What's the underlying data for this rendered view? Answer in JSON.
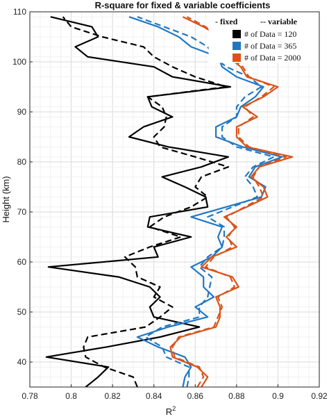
{
  "chart_data": {
    "type": "line",
    "title": "R-square for fixed & variable coefficients",
    "xlabel": "R",
    "xlabel_sup": "2",
    "ylabel": "Height (km)",
    "xlim": [
      0.78,
      0.92
    ],
    "ylim": [
      35,
      110
    ],
    "xticks": [
      "0.78",
      "0.8",
      "0.82",
      "0.84",
      "0.86",
      "0.88",
      "0.9",
      "0.92"
    ],
    "yticks": [
      "40",
      "50",
      "60",
      "70",
      "80",
      "90",
      "100",
      "110"
    ],
    "grid": true,
    "legend_position": "top-right",
    "legend": {
      "style_fixed": "- fixed",
      "style_variable": "-- variable",
      "entries": [
        {
          "label": "# of Data = 120",
          "color": "#000000"
        },
        {
          "label": "# of Data = 365",
          "color": "#1f77c4"
        },
        {
          "label": "# of Data = 2000",
          "color": "#d95319"
        }
      ]
    },
    "heights": [
      35,
      37,
      39,
      41,
      43,
      45,
      47,
      49,
      51,
      53,
      55,
      57,
      59,
      61,
      63,
      65,
      67,
      69,
      71,
      73,
      75,
      77,
      79,
      81,
      83,
      85,
      87,
      89,
      91,
      93,
      95,
      97,
      99,
      101,
      103,
      105,
      107,
      109
    ],
    "series": [
      {
        "color": "#000000",
        "style": "solid",
        "values": [
          0.807,
          0.813,
          0.818,
          0.788,
          0.817,
          0.843,
          0.862,
          0.84,
          0.838,
          0.843,
          0.838,
          0.823,
          0.789,
          0.842,
          0.84,
          0.858,
          0.837,
          0.838,
          0.866,
          0.865,
          0.855,
          0.844,
          0.863,
          0.876,
          0.847,
          0.828,
          0.835,
          0.849,
          0.839,
          0.837,
          0.877,
          0.849,
          0.84,
          0.808,
          0.802,
          0.813,
          0.81,
          0.79
        ]
      },
      {
        "color": "#000000",
        "style": "dashed",
        "values": [
          0.832,
          0.83,
          0.816,
          0.807,
          0.806,
          0.808,
          0.836,
          0.843,
          0.849,
          0.84,
          0.843,
          0.832,
          0.831,
          0.826,
          0.838,
          0.853,
          0.838,
          0.845,
          0.858,
          0.866,
          0.86,
          0.863,
          0.876,
          0.86,
          0.843,
          0.84,
          0.845,
          0.846,
          0.844,
          0.837,
          0.875,
          0.86,
          0.849,
          0.84,
          0.835,
          0.815,
          0.8,
          0.796
        ]
      },
      {
        "color": "#1f77c4",
        "style": "solid",
        "values": [
          0.854,
          0.855,
          0.858,
          0.855,
          0.842,
          0.832,
          0.847,
          0.866,
          0.86,
          0.869,
          0.864,
          0.864,
          0.858,
          0.868,
          0.873,
          0.871,
          0.873,
          0.858,
          0.875,
          0.892,
          0.894,
          0.886,
          0.889,
          0.902,
          0.883,
          0.87,
          0.87,
          0.88,
          0.882,
          0.889,
          0.893,
          0.88,
          0.873,
          0.871,
          0.858,
          0.852,
          0.842,
          0.828
        ]
      },
      {
        "color": "#1f77c4",
        "style": "dashed",
        "values": [
          0.856,
          0.857,
          0.857,
          0.846,
          0.844,
          0.836,
          0.844,
          0.862,
          0.862,
          0.866,
          0.867,
          0.868,
          0.862,
          0.866,
          0.873,
          0.874,
          0.874,
          0.866,
          0.878,
          0.89,
          0.888,
          0.884,
          0.888,
          0.898,
          0.88,
          0.873,
          0.873,
          0.88,
          0.88,
          0.884,
          0.892,
          0.886,
          0.875,
          0.869,
          0.866,
          0.858,
          0.845,
          0.832
        ]
      },
      {
        "color": "#d95319",
        "style": "solid",
        "values": [
          0.863,
          0.866,
          0.861,
          0.849,
          0.848,
          0.853,
          0.87,
          0.872,
          0.872,
          0.87,
          0.881,
          0.878,
          0.863,
          0.868,
          0.88,
          0.875,
          0.88,
          0.874,
          0.885,
          0.895,
          0.893,
          0.887,
          0.891,
          0.907,
          0.885,
          0.88,
          0.88,
          0.89,
          0.883,
          0.893,
          0.9,
          0.885,
          0.882,
          0.876,
          0.875,
          0.872,
          0.864,
          0.854
        ]
      },
      {
        "color": "#d95319",
        "style": "dashed",
        "values": [
          0.861,
          0.864,
          0.862,
          0.85,
          0.849,
          0.852,
          0.869,
          0.871,
          0.873,
          0.871,
          0.879,
          0.877,
          0.865,
          0.869,
          0.878,
          0.876,
          0.879,
          0.875,
          0.884,
          0.893,
          0.891,
          0.888,
          0.891,
          0.904,
          0.886,
          0.881,
          0.881,
          0.888,
          0.884,
          0.892,
          0.898,
          0.886,
          0.883,
          0.877,
          0.876,
          0.871,
          0.865,
          0.856
        ]
      }
    ]
  }
}
